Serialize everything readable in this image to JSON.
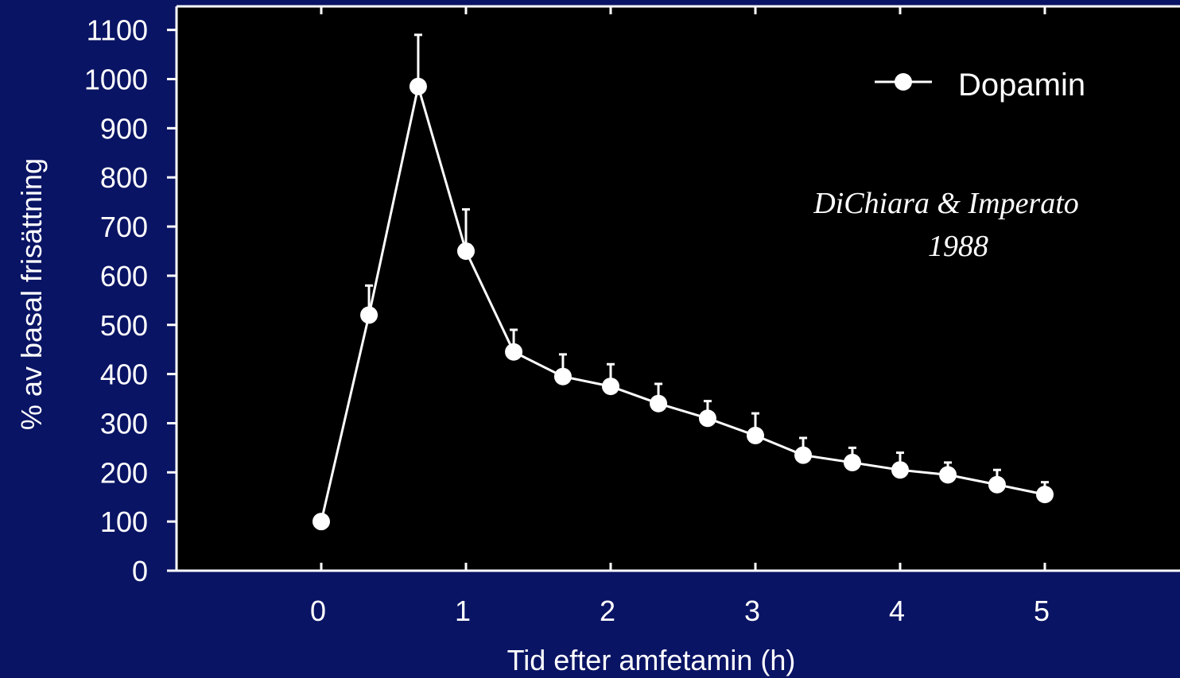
{
  "chart_data": {
    "type": "line",
    "title": "",
    "xlabel": "Tid efter amfetamin (h)",
    "ylabel": "% av basal frisättning",
    "xlim": [
      -1,
      5.9
    ],
    "ylim": [
      0,
      1100
    ],
    "x_ticks": [
      0,
      1,
      2,
      3,
      4,
      5
    ],
    "x_tick_labels": [
      "0",
      "1",
      "2",
      "3",
      "4",
      "5"
    ],
    "y_ticks": [
      0,
      100,
      200,
      300,
      400,
      500,
      600,
      700,
      800,
      900,
      1000,
      1100
    ],
    "y_tick_labels": [
      "0",
      "100",
      "200",
      "300",
      "400",
      "500",
      "600",
      "700",
      "800",
      "900",
      "1000",
      "1100"
    ],
    "grid": false,
    "legend_position": "top-right",
    "series": [
      {
        "name": "Dopamin",
        "x": [
          0,
          0.33,
          0.67,
          1,
          1.33,
          1.67,
          2,
          2.33,
          2.67,
          3,
          3.33,
          3.67,
          4,
          4.33,
          4.67,
          5
        ],
        "y": [
          100,
          520,
          985,
          650,
          445,
          395,
          375,
          340,
          310,
          275,
          235,
          220,
          205,
          195,
          175,
          155
        ],
        "error_upper": [
          0,
          60,
          105,
          85,
          45,
          45,
          45,
          40,
          35,
          45,
          35,
          30,
          35,
          25,
          30,
          25
        ]
      }
    ],
    "annotations": [
      {
        "lines": [
          "DiChiara & Imperato",
          "1988"
        ],
        "style": "italic"
      }
    ],
    "colors": {
      "background": "#0a1464",
      "plot_background": "#000000",
      "series": "#ffffff",
      "text": "#ffffff"
    }
  }
}
